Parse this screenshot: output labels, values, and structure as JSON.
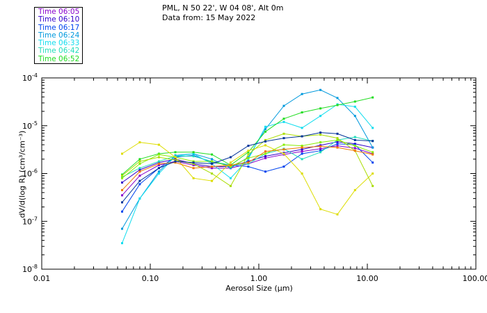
{
  "header": {
    "location": "PML, N 50 22', W 04 08', Alt 0m",
    "date_line": "Data from: 15 May 2022"
  },
  "legend": [
    {
      "label": "Time 06:05",
      "color": "#8800cc"
    },
    {
      "label": "Time 06:10",
      "color": "#3300cc"
    },
    {
      "label": "Time 06:17",
      "color": "#0044ee"
    },
    {
      "label": "Time 06:24",
      "color": "#0099dd"
    },
    {
      "label": "Time 06:33",
      "color": "#11ddee"
    },
    {
      "label": "Time 06:42",
      "color": "#22ddbb"
    },
    {
      "label": "Time 06:52",
      "color": "#22dd22"
    }
  ],
  "chart_data": {
    "type": "line",
    "title": "PML, N 50 22', W 04 08', Alt 0m",
    "subtitle": "Data from: 15 May 2022",
    "xlabel": "Aerosol Size (µm)",
    "ylabel": "dV/d(log R) (cm³/cm⁻³)",
    "xscale": "log",
    "yscale": "log",
    "xlim": [
      0.01,
      100
    ],
    "ylim_exp": [
      -8,
      -4
    ],
    "x_ticks": [
      {
        "value": 0.01,
        "label": "0.01"
      },
      {
        "value": 0.1,
        "label": "0.10"
      },
      {
        "value": 1,
        "label": "1.00"
      },
      {
        "value": 10,
        "label": "10.00"
      },
      {
        "value": 100,
        "label": "100.00"
      }
    ],
    "y_ticks": [
      {
        "exp": -8,
        "base": "10",
        "sup": "-8"
      },
      {
        "exp": -7,
        "base": "10",
        "sup": "-7"
      },
      {
        "exp": -6,
        "base": "10",
        "sup": "-6"
      },
      {
        "exp": -5,
        "base": "10",
        "sup": "-5"
      },
      {
        "exp": -4,
        "base": "10",
        "sup": "-4"
      }
    ],
    "x": [
      0.055,
      0.08,
      0.12,
      0.17,
      0.25,
      0.37,
      0.55,
      0.8,
      1.15,
      1.7,
      2.5,
      3.7,
      5.3,
      7.7,
      11.2
    ],
    "series": [
      {
        "name": "Time 06:05",
        "color": "#8800cc",
        "values": [
          3.5e-07,
          9e-07,
          1.5e-06,
          1.8e-06,
          1.5e-06,
          1.3e-06,
          1.3e-06,
          1.6e-06,
          2.1e-06,
          2.5e-06,
          2.9e-06,
          3.3e-06,
          3.8e-06,
          3.4e-06,
          2.6e-06
        ]
      },
      {
        "name": "Time 06:10",
        "color": "#3300cc",
        "values": [
          6.5e-07,
          1.2e-06,
          1.7e-06,
          2e-06,
          1.6e-06,
          1.4e-06,
          1.4e-06,
          1.8e-06,
          2.3e-06,
          2.7e-06,
          3.2e-06,
          3.9e-06,
          4.6e-06,
          4.2e-06,
          3.5e-06
        ]
      },
      {
        "name": "Time 06:17",
        "color": "#0044ee",
        "values": [
          1.6e-07,
          6e-07,
          1.3e-06,
          2.2e-06,
          2.4e-06,
          1.7e-06,
          1.5e-06,
          1.4e-06,
          1.1e-06,
          1.4e-06,
          2.6e-06,
          3e-06,
          4.2e-06,
          4e-06,
          1.7e-06
        ]
      },
      {
        "name": "Time 06:24",
        "color": "#0099dd",
        "values": [
          7e-08,
          3e-07,
          1.1e-06,
          2.4e-06,
          2.6e-06,
          2e-06,
          1.3e-06,
          2.2e-06,
          8.5e-06,
          2.6e-05,
          4.6e-05,
          5.6e-05,
          3.8e-05,
          1.6e-05,
          3.5e-06
        ]
      },
      {
        "name": "Time 06:33",
        "color": "#11ddee",
        "values": [
          3.5e-08,
          3e-07,
          1e-06,
          2.3e-06,
          2.6e-06,
          1.6e-06,
          8e-07,
          2e-06,
          9.5e-06,
          1.2e-05,
          9e-06,
          1.6e-05,
          2.8e-05,
          2.5e-05,
          9e-06
        ]
      },
      {
        "name": "Time 06:42",
        "color": "#22ddbb",
        "values": [
          8.5e-07,
          1.3e-06,
          1.8e-06,
          2.3e-06,
          2.3e-06,
          1.8e-06,
          1.5e-06,
          1.6e-06,
          2.6e-06,
          3.3e-06,
          2e-06,
          2.8e-06,
          5e-06,
          5.8e-06,
          4.8e-06
        ]
      },
      {
        "name": "Time 06:52",
        "color": "#22dd22",
        "values": [
          9.5e-07,
          2e-06,
          2.6e-06,
          2.8e-06,
          2.8e-06,
          2.5e-06,
          1.5e-06,
          2.8e-06,
          7.5e-06,
          1.4e-05,
          1.9e-05,
          2.3e-05,
          2.7e-05,
          3.2e-05,
          3.9e-05
        ]
      },
      {
        "name": "",
        "color": "#88ee00",
        "values": [
          8e-07,
          1.6e-06,
          2.5e-06,
          2.2e-06,
          1.8e-06,
          1.8e-06,
          1.4e-06,
          2.1e-06,
          2.6e-06,
          4e-06,
          3.8e-06,
          4.5e-06,
          5e-06,
          3.8e-06,
          2.8e-06
        ]
      },
      {
        "name": "",
        "color": "#dddd00",
        "values": [
          2.6e-06,
          4.5e-06,
          4e-06,
          2.2e-06,
          8e-07,
          7e-07,
          1.7e-06,
          3e-06,
          3.9e-06,
          2.6e-06,
          1e-06,
          1.8e-07,
          1.4e-07,
          4.5e-07,
          1e-06
        ]
      },
      {
        "name": "",
        "color": "#aadd00",
        "values": [
          9e-07,
          1.8e-06,
          2.2e-06,
          1.9e-06,
          1.6e-06,
          1e-06,
          5.5e-07,
          2.5e-06,
          5e-06,
          6.8e-06,
          6e-06,
          6.5e-06,
          5.5e-06,
          3e-06,
          5.5e-07
        ]
      },
      {
        "name": "",
        "color": "#ee7700",
        "values": [
          4.5e-07,
          1.1e-06,
          1.6e-06,
          1.7e-06,
          1.3e-06,
          1.4e-06,
          1.5e-06,
          1.7e-06,
          2.9e-06,
          3.2e-06,
          3.5e-06,
          3.7e-06,
          3.5e-06,
          3e-06,
          2.5e-06
        ]
      },
      {
        "name": "",
        "color": "#003399",
        "values": [
          2.5e-07,
          7e-07,
          1.3e-06,
          1.8e-06,
          1.7e-06,
          1.6e-06,
          2.2e-06,
          3.8e-06,
          4.7e-06,
          5.5e-06,
          6e-06,
          7.2e-06,
          6.8e-06,
          5e-06,
          4.8e-06
        ]
      }
    ]
  }
}
